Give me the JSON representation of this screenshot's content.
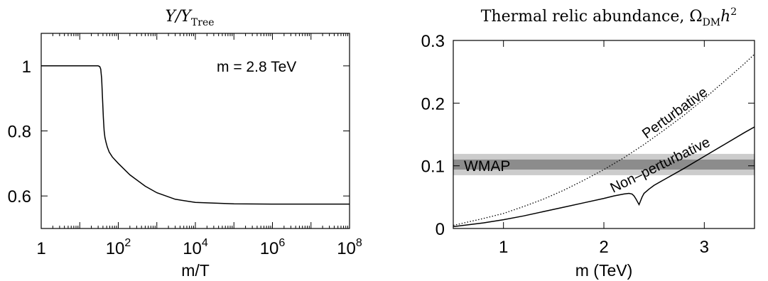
{
  "chart_data": [
    {
      "type": "line",
      "title": {
        "prefix": "Y/Y",
        "subscript": "Tree"
      },
      "xlabel": "m/T",
      "xscale": "log",
      "xlim": [
        1,
        100000000
      ],
      "ylim": [
        0.5,
        1.1
      ],
      "xticks": [
        {
          "value": 1,
          "base": "1",
          "exp": ""
        },
        {
          "value": 100,
          "base": "10",
          "exp": "2"
        },
        {
          "value": 10000,
          "base": "10",
          "exp": "4"
        },
        {
          "value": 1000000,
          "base": "10",
          "exp": "6"
        },
        {
          "value": 100000000,
          "base": "10",
          "exp": "8"
        }
      ],
      "yticks": [
        {
          "value": 0.6,
          "label": "0.6"
        },
        {
          "value": 0.8,
          "label": "0.8"
        },
        {
          "value": 1.0,
          "label": "1"
        }
      ],
      "annotation": "m = 2.8 TeV",
      "series": [
        {
          "x": [
            1,
            5,
            10,
            20,
            30,
            33,
            35,
            37,
            39,
            41,
            43,
            45,
            48,
            52,
            58,
            70,
            100,
            200,
            500,
            1000,
            3000,
            10000,
            100000,
            1000000,
            100000000
          ],
          "y": [
            1.0,
            1.0,
            1.0,
            1.0,
            1.0,
            0.998,
            0.99,
            0.96,
            0.9,
            0.84,
            0.8,
            0.78,
            0.765,
            0.75,
            0.735,
            0.72,
            0.7,
            0.665,
            0.63,
            0.61,
            0.59,
            0.58,
            0.576,
            0.575,
            0.575
          ]
        }
      ]
    },
    {
      "type": "line",
      "title": {
        "prefix": "Thermal relic abundance, Ω",
        "subscript": "DM",
        "suffix": "h",
        "superscript": "2"
      },
      "xlabel": "m (TeV)",
      "xlim": [
        0.5,
        3.5
      ],
      "ylim": [
        0,
        0.3
      ],
      "xticks": [
        {
          "value": 1,
          "label": "1"
        },
        {
          "value": 2,
          "label": "2"
        },
        {
          "value": 3,
          "label": "3"
        }
      ],
      "yticks": [
        {
          "value": 0,
          "label": "0"
        },
        {
          "value": 0.1,
          "label": "0.1"
        },
        {
          "value": 0.2,
          "label": "0.2"
        },
        {
          "value": 0.3,
          "label": "0.3"
        }
      ],
      "bands": [
        {
          "name": "WMAP",
          "ymin": 0.085,
          "ymax": 0.119,
          "color": "#cccccc"
        },
        {
          "ymin": 0.094,
          "ymax": 0.11,
          "color": "#8c8c8c"
        }
      ],
      "series": [
        {
          "name": "Perturbative",
          "style": "dotted",
          "x": [
            0.5,
            0.8,
            1.0,
            1.2,
            1.4,
            1.6,
            1.8,
            2.0,
            2.2,
            2.4,
            2.6,
            2.8,
            3.0,
            3.2,
            3.4,
            3.5
          ],
          "y": [
            0.005,
            0.016,
            0.024,
            0.035,
            0.047,
            0.061,
            0.077,
            0.094,
            0.113,
            0.134,
            0.157,
            0.181,
            0.207,
            0.235,
            0.263,
            0.278
          ]
        },
        {
          "name": "Non–perturbative",
          "style": "solid",
          "x": [
            0.5,
            0.8,
            1.0,
            1.2,
            1.4,
            1.6,
            1.8,
            2.0,
            2.1,
            2.2,
            2.25,
            2.28,
            2.3,
            2.32,
            2.34,
            2.35,
            2.36,
            2.38,
            2.4,
            2.45,
            2.5,
            2.6,
            2.8,
            3.0,
            3.2,
            3.4,
            3.5
          ],
          "y": [
            0.003,
            0.009,
            0.014,
            0.02,
            0.027,
            0.034,
            0.041,
            0.048,
            0.052,
            0.055,
            0.056,
            0.055,
            0.052,
            0.047,
            0.041,
            0.038,
            0.042,
            0.05,
            0.056,
            0.063,
            0.069,
            0.078,
            0.096,
            0.115,
            0.134,
            0.153,
            0.162
          ]
        }
      ]
    }
  ]
}
